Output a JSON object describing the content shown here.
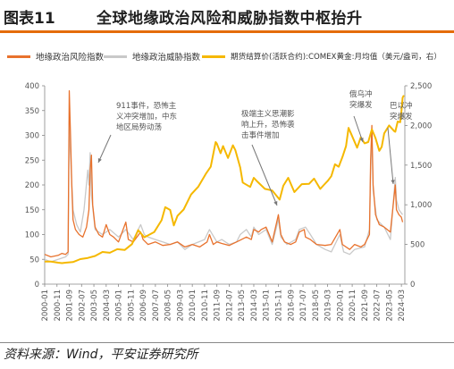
{
  "header": {
    "figure_label": "图表11",
    "title": "全球地缘政治风险和威胁指数中枢抬升"
  },
  "footer": {
    "source": "资料来源：Wind，平安证券研究所"
  },
  "colors": {
    "gpr": "#e8722d",
    "threat": "#c9c9c9",
    "gold": "#f5b800",
    "accent_rule": "#e46c0a"
  },
  "chart_data": {
    "type": "line",
    "legend_placement": "top",
    "grid": false,
    "x_tick_labels": [
      "2000-01",
      "2000-11",
      "2001-09",
      "2002-07",
      "2003-05",
      "2004-03",
      "2005-01",
      "2005-11",
      "2006-09",
      "2007-07",
      "2008-05",
      "2009-03",
      "2010-01",
      "2010-11",
      "2011-09",
      "2012-07",
      "2013-05",
      "2014-03",
      "2015-01",
      "2015-11",
      "2016-09",
      "2017-07",
      "2018-05",
      "2019-03",
      "2020-01",
      "2020-11",
      "2021-09",
      "2022-07",
      "2023-05",
      "2024-03"
    ],
    "y_left": {
      "range": [
        0,
        400
      ],
      "ticks": [
        0,
        50,
        100,
        150,
        200,
        250,
        300,
        350,
        400
      ]
    },
    "y_right": {
      "range": [
        0,
        2500
      ],
      "ticks": [
        0,
        500,
        1000,
        1500,
        2000,
        2500
      ],
      "tick_labels": [
        "0",
        "500",
        "1,000",
        "1,500",
        "2,000",
        "2,500"
      ]
    },
    "series": [
      {
        "name": "地缘政治风险指数",
        "axis": "left",
        "color": "#e8722d",
        "points": [
          [
            "2000-01",
            60
          ],
          [
            "2000-06",
            55
          ],
          [
            "2000-12",
            58
          ],
          [
            "2001-03",
            62
          ],
          [
            "2001-06",
            60
          ],
          [
            "2001-08",
            65
          ],
          [
            "2001-09",
            390
          ],
          [
            "2001-10",
            300
          ],
          [
            "2001-11",
            200
          ],
          [
            "2001-12",
            130
          ],
          [
            "2002-02",
            110
          ],
          [
            "2002-05",
            100
          ],
          [
            "2002-08",
            95
          ],
          [
            "2002-11",
            115
          ],
          [
            "2003-01",
            150
          ],
          [
            "2003-02",
            230
          ],
          [
            "2003-03",
            260
          ],
          [
            "2003-04",
            160
          ],
          [
            "2003-06",
            115
          ],
          [
            "2003-09",
            100
          ],
          [
            "2003-12",
            95
          ],
          [
            "2004-03",
            120
          ],
          [
            "2004-06",
            100
          ],
          [
            "2004-09",
            95
          ],
          [
            "2005-01",
            85
          ],
          [
            "2005-07",
            125
          ],
          [
            "2005-09",
            90
          ],
          [
            "2006-01",
            85
          ],
          [
            "2006-07",
            105
          ],
          [
            "2006-09",
            90
          ],
          [
            "2007-01",
            80
          ],
          [
            "2007-07",
            85
          ],
          [
            "2008-01",
            78
          ],
          [
            "2008-07",
            80
          ],
          [
            "2009-01",
            85
          ],
          [
            "2009-07",
            75
          ],
          [
            "2010-01",
            80
          ],
          [
            "2010-07",
            75
          ],
          [
            "2011-01",
            85
          ],
          [
            "2011-03",
            100
          ],
          [
            "2011-06",
            80
          ],
          [
            "2011-09",
            85
          ],
          [
            "2012-01",
            82
          ],
          [
            "2012-07",
            78
          ],
          [
            "2013-01",
            85
          ],
          [
            "2013-09",
            95
          ],
          [
            "2014-01",
            90
          ],
          [
            "2014-03",
            110
          ],
          [
            "2014-07",
            105
          ],
          [
            "2014-09",
            110
          ],
          [
            "2015-01",
            115
          ],
          [
            "2015-06",
            85
          ],
          [
            "2015-11",
            140
          ],
          [
            "2016-01",
            100
          ],
          [
            "2016-04",
            85
          ],
          [
            "2016-09",
            80
          ],
          [
            "2017-01",
            85
          ],
          [
            "2017-04",
            105
          ],
          [
            "2017-08",
            110
          ],
          [
            "2017-09",
            95
          ],
          [
            "2018-01",
            90
          ],
          [
            "2018-06",
            80
          ],
          [
            "2019-01",
            78
          ],
          [
            "2019-06",
            80
          ],
          [
            "2020-01",
            110
          ],
          [
            "2020-03",
            80
          ],
          [
            "2020-09",
            70
          ],
          [
            "2021-01",
            80
          ],
          [
            "2021-06",
            75
          ],
          [
            "2021-09",
            80
          ],
          [
            "2022-01",
            100
          ],
          [
            "2022-02",
            250
          ],
          [
            "2022-03",
            320
          ],
          [
            "2022-04",
            200
          ],
          [
            "2022-06",
            140
          ],
          [
            "2022-09",
            120
          ],
          [
            "2023-01",
            115
          ],
          [
            "2023-06",
            105
          ],
          [
            "2023-10",
            200
          ],
          [
            "2023-11",
            150
          ],
          [
            "2024-01",
            140
          ],
          [
            "2024-03",
            135
          ],
          [
            "2024-04",
            125
          ]
        ]
      },
      {
        "name": "地缘政治威胁指数",
        "axis": "left",
        "color": "#c9c9c9",
        "points": [
          [
            "2000-01",
            50
          ],
          [
            "2000-06",
            45
          ],
          [
            "2000-12",
            50
          ],
          [
            "2001-06",
            55
          ],
          [
            "2001-08",
            60
          ],
          [
            "2001-09",
            330
          ],
          [
            "2001-10",
            260
          ],
          [
            "2001-12",
            150
          ],
          [
            "2002-03",
            120
          ],
          [
            "2002-06",
            105
          ],
          [
            "2002-09",
            150
          ],
          [
            "2002-12",
            230
          ],
          [
            "2003-01",
            200
          ],
          [
            "2003-02",
            265
          ],
          [
            "2003-03",
            180
          ],
          [
            "2003-06",
            110
          ],
          [
            "2003-12",
            100
          ],
          [
            "2004-06",
            110
          ],
          [
            "2005-01",
            95
          ],
          [
            "2005-07",
            110
          ],
          [
            "2006-01",
            90
          ],
          [
            "2006-07",
            120
          ],
          [
            "2006-10",
            100
          ],
          [
            "2007-01",
            95
          ],
          [
            "2007-07",
            90
          ],
          [
            "2008-01",
            85
          ],
          [
            "2008-07",
            80
          ],
          [
            "2009-01",
            85
          ],
          [
            "2009-07",
            70
          ],
          [
            "2010-01",
            80
          ],
          [
            "2010-11",
            90
          ],
          [
            "2011-03",
            110
          ],
          [
            "2011-09",
            85
          ],
          [
            "2012-01",
            90
          ],
          [
            "2012-07",
            80
          ],
          [
            "2013-01",
            85
          ],
          [
            "2013-04",
            100
          ],
          [
            "2013-09",
            110
          ],
          [
            "2014-01",
            95
          ],
          [
            "2014-03",
            115
          ],
          [
            "2014-07",
            100
          ],
          [
            "2015-01",
            110
          ],
          [
            "2015-06",
            80
          ],
          [
            "2015-11",
            130
          ],
          [
            "2016-01",
            95
          ],
          [
            "2016-06",
            80
          ],
          [
            "2017-01",
            90
          ],
          [
            "2017-04",
            110
          ],
          [
            "2017-09",
            115
          ],
          [
            "2018-01",
            100
          ],
          [
            "2018-06",
            80
          ],
          [
            "2019-01",
            70
          ],
          [
            "2019-06",
            65
          ],
          [
            "2020-01",
            100
          ],
          [
            "2020-04",
            65
          ],
          [
            "2020-09",
            60
          ],
          [
            "2021-01",
            70
          ],
          [
            "2021-09",
            75
          ],
          [
            "2022-01",
            110
          ],
          [
            "2022-02",
            230
          ],
          [
            "2022-03",
            300
          ],
          [
            "2022-04",
            190
          ],
          [
            "2022-07",
            130
          ],
          [
            "2023-01",
            115
          ],
          [
            "2023-06",
            90
          ],
          [
            "2023-10",
            215
          ],
          [
            "2023-11",
            170
          ],
          [
            "2024-01",
            150
          ],
          [
            "2024-04",
            140
          ]
        ]
      },
      {
        "name": "期货结算价(活跃合约):COMEX黄金:月均值（美元/盎司，右）",
        "axis": "right",
        "color": "#f5b800",
        "points": [
          [
            "2000-01",
            285
          ],
          [
            "2000-06",
            285
          ],
          [
            "2000-12",
            270
          ],
          [
            "2001-03",
            265
          ],
          [
            "2001-06",
            270
          ],
          [
            "2001-12",
            278
          ],
          [
            "2002-06",
            315
          ],
          [
            "2002-12",
            330
          ],
          [
            "2003-06",
            355
          ],
          [
            "2003-12",
            405
          ],
          [
            "2004-06",
            395
          ],
          [
            "2004-12",
            440
          ],
          [
            "2005-06",
            430
          ],
          [
            "2005-12",
            505
          ],
          [
            "2006-05",
            680
          ],
          [
            "2006-10",
            590
          ],
          [
            "2007-06",
            655
          ],
          [
            "2007-12",
            805
          ],
          [
            "2008-03",
            970
          ],
          [
            "2008-07",
            935
          ],
          [
            "2008-10",
            740
          ],
          [
            "2009-01",
            860
          ],
          [
            "2009-06",
            940
          ],
          [
            "2009-12",
            1130
          ],
          [
            "2010-06",
            1230
          ],
          [
            "2010-12",
            1390
          ],
          [
            "2011-04",
            1480
          ],
          [
            "2011-08",
            1790
          ],
          [
            "2011-09",
            1770
          ],
          [
            "2011-12",
            1650
          ],
          [
            "2012-02",
            1740
          ],
          [
            "2012-06",
            1590
          ],
          [
            "2012-10",
            1750
          ],
          [
            "2012-12",
            1690
          ],
          [
            "2013-04",
            1470
          ],
          [
            "2013-06",
            1280
          ],
          [
            "2013-12",
            1225
          ],
          [
            "2014-03",
            1340
          ],
          [
            "2014-06",
            1290
          ],
          [
            "2014-12",
            1200
          ],
          [
            "2015-06",
            1180
          ],
          [
            "2015-12",
            1065
          ],
          [
            "2016-03",
            1240
          ],
          [
            "2016-07",
            1340
          ],
          [
            "2016-12",
            1160
          ],
          [
            "2017-06",
            1260
          ],
          [
            "2017-12",
            1265
          ],
          [
            "2018-04",
            1330
          ],
          [
            "2018-09",
            1200
          ],
          [
            "2018-12",
            1250
          ],
          [
            "2019-03",
            1300
          ],
          [
            "2019-06",
            1360
          ],
          [
            "2019-09",
            1510
          ],
          [
            "2019-12",
            1480
          ],
          [
            "2020-03",
            1600
          ],
          [
            "2020-06",
            1740
          ],
          [
            "2020-08",
            1970
          ],
          [
            "2020-10",
            1900
          ],
          [
            "2021-03",
            1720
          ],
          [
            "2021-06",
            1850
          ],
          [
            "2021-09",
            1775
          ],
          [
            "2021-12",
            1790
          ],
          [
            "2022-03",
            1950
          ],
          [
            "2022-06",
            1840
          ],
          [
            "2022-09",
            1680
          ],
          [
            "2022-11",
            1730
          ],
          [
            "2023-01",
            1900
          ],
          [
            "2023-05",
            2000
          ],
          [
            "2023-09",
            1930
          ],
          [
            "2023-10",
            1920
          ],
          [
            "2023-12",
            2050
          ],
          [
            "2024-02",
            2040
          ],
          [
            "2024-03",
            2170
          ],
          [
            "2024-04",
            2350
          ],
          [
            "2024-05",
            2380
          ]
        ]
      }
    ],
    "annotations": [
      {
        "lines": [
          "911事件，恐怖主",
          "义冲突增加，中东",
          "地区局势动荡"
        ]
      },
      {
        "lines": [
          "极端主义思潮影",
          "响上升，恐怖袭",
          "击事件增加"
        ]
      },
      {
        "lines": [
          "俄乌冲",
          "突爆发"
        ]
      },
      {
        "lines": [
          "巴以冲",
          "突爆发"
        ]
      }
    ]
  }
}
